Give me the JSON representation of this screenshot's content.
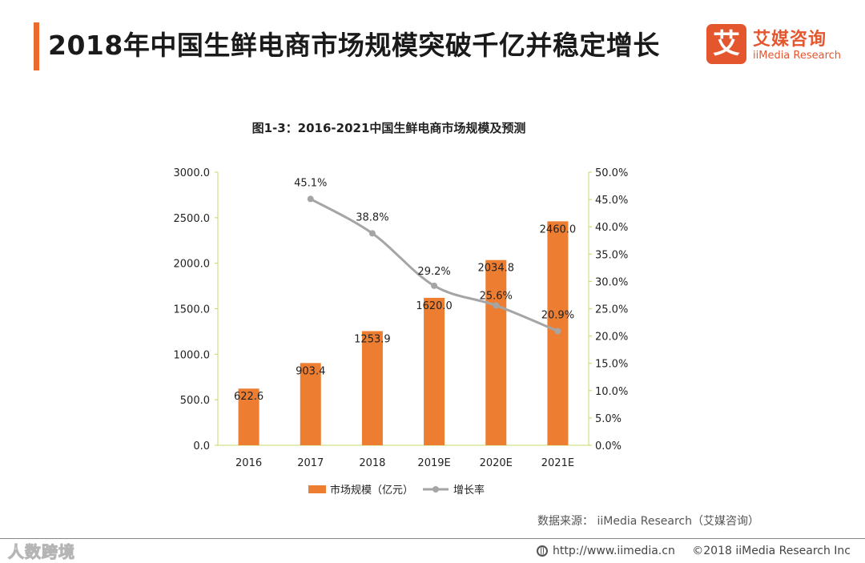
{
  "header": {
    "title": "2018年中国生鲜电商市场规模突破千亿并稳定增长",
    "accent_color": "#ea6b2d"
  },
  "logo": {
    "mark": "艾",
    "name_cn": "艾媒咨询",
    "name_en": "iiMedia Research",
    "color": "#e4572e"
  },
  "chart_data": {
    "type": "bar+line",
    "title": "图1-3：2016-2021中国生鲜电商市场规模及预测",
    "categories": [
      "2016",
      "2017",
      "2018",
      "2019E",
      "2020E",
      "2021E"
    ],
    "series": [
      {
        "name": "市场规模（亿元）",
        "type": "bar",
        "axis": "left",
        "color": "#ed7d31",
        "values": [
          622.6,
          903.4,
          1253.9,
          1620.0,
          2034.8,
          2460.0
        ],
        "labels": [
          "622.6",
          "903.4",
          "1253.9",
          "1620.0",
          "2034.8",
          "2460.0"
        ]
      },
      {
        "name": "增长率",
        "type": "line",
        "axis": "right",
        "color": "#a5a5a5",
        "values": [
          null,
          45.1,
          38.8,
          29.2,
          25.6,
          20.9
        ],
        "labels": [
          null,
          "45.1%",
          "38.8%",
          "29.2%",
          "25.6%",
          "20.9%"
        ]
      }
    ],
    "y_left": {
      "min": 0,
      "max": 3000,
      "ticks": [
        0,
        500,
        1000,
        1500,
        2000,
        2500,
        3000
      ],
      "tick_labels": [
        "0.0",
        "500.0",
        "1000.0",
        "1500.0",
        "2000.0",
        "2500.0",
        "3000.0"
      ]
    },
    "y_right": {
      "min": 0,
      "max": 50,
      "ticks": [
        0,
        5,
        10,
        15,
        20,
        25,
        30,
        35,
        40,
        45,
        50
      ],
      "tick_labels": [
        "0.0%",
        "5.0%",
        "10.0%",
        "15.0%",
        "20.0%",
        "25.0%",
        "30.0%",
        "35.0%",
        "40.0%",
        "45.0%",
        "50.0%"
      ]
    },
    "grid": false,
    "legend_position": "bottom",
    "axis_line_color": "#c5d96a"
  },
  "source": "数据来源：  iiMedia Research（艾媒咨询）",
  "footer": {
    "watermark": "人数跨境",
    "url": "http://www.iimedia.cn",
    "copyright": "©2018  iiMedia Research  Inc"
  }
}
